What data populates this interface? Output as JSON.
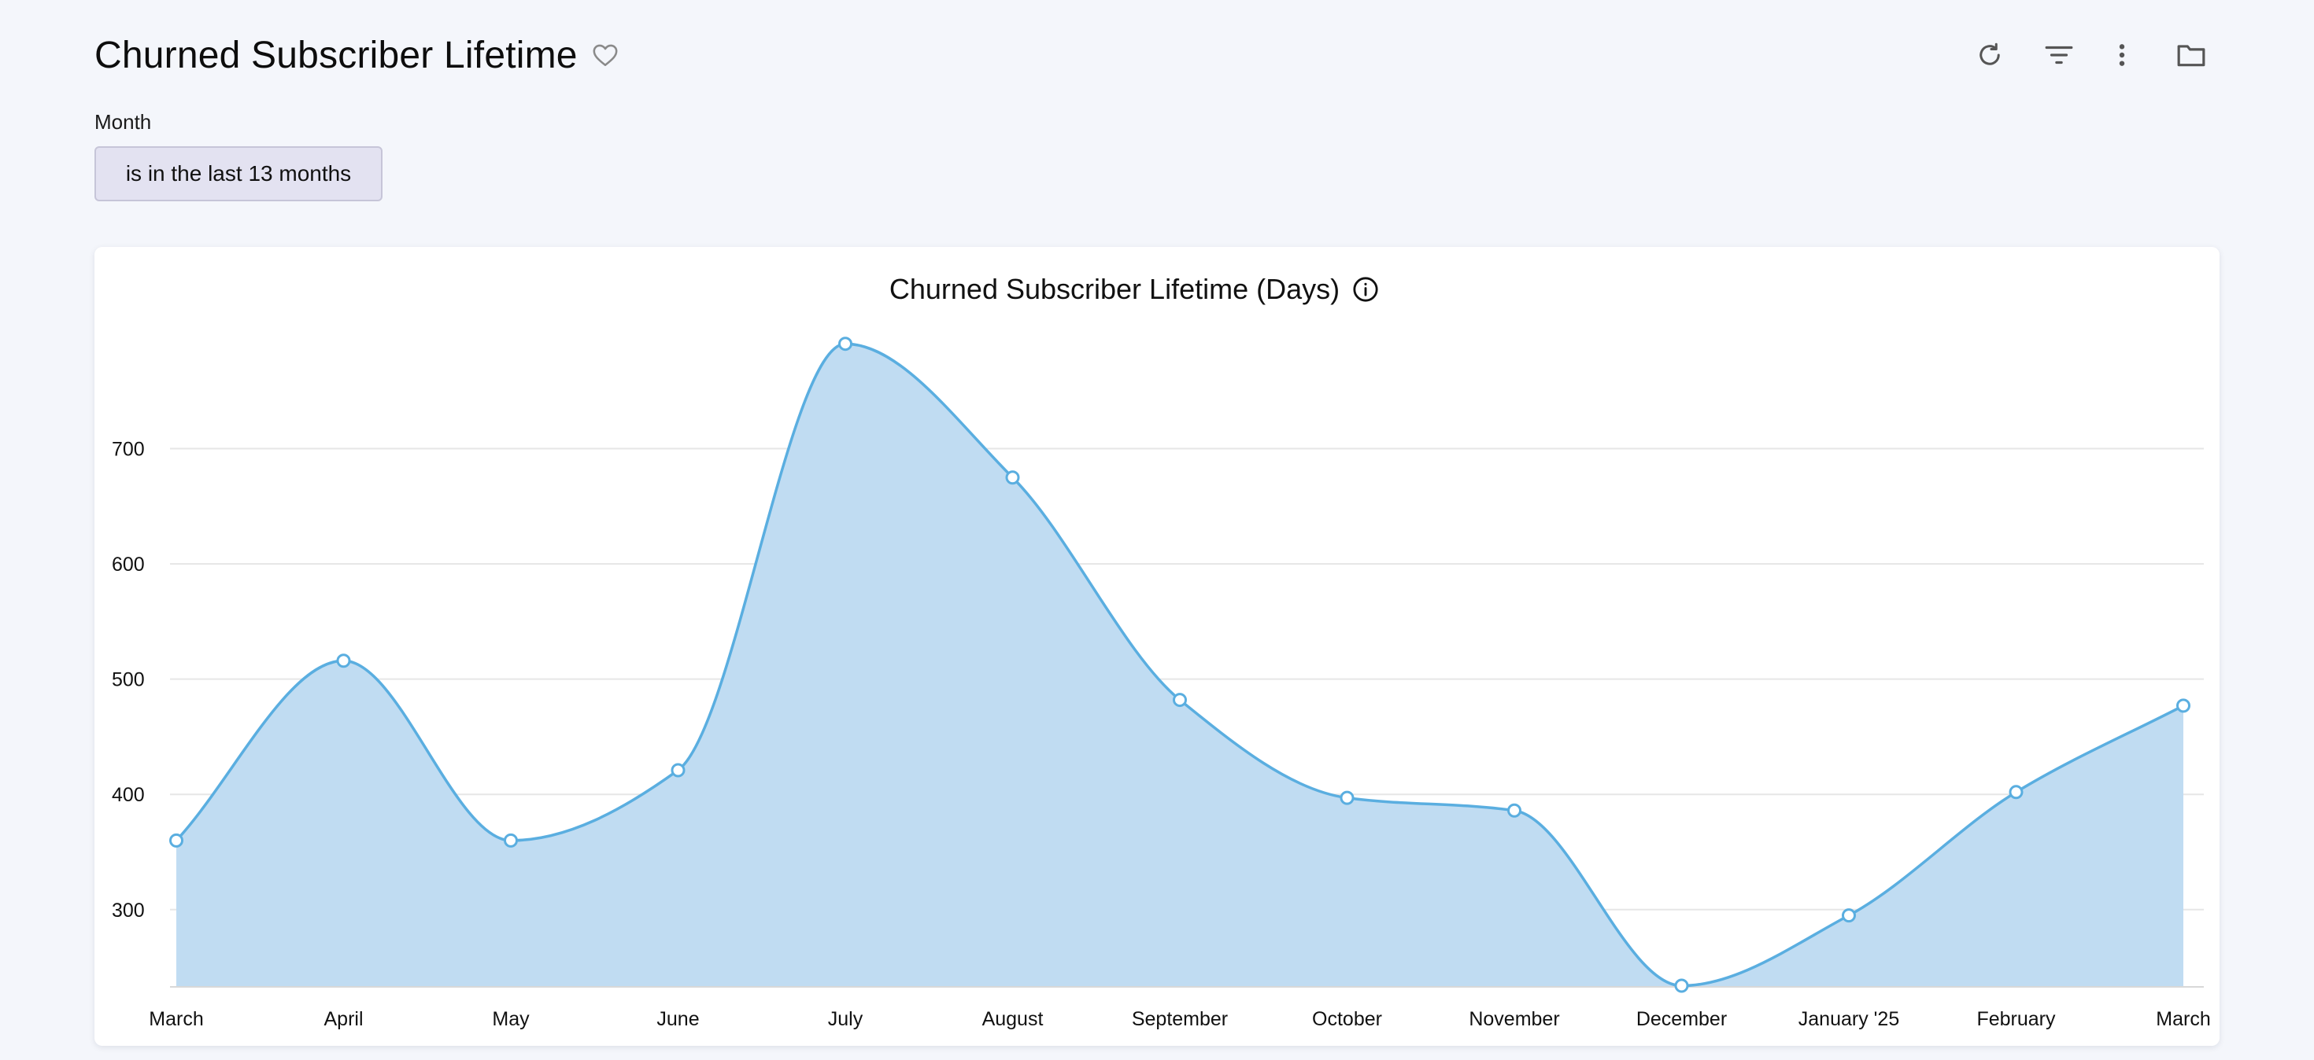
{
  "header": {
    "title": "Churned Subscriber Lifetime",
    "favorite_icon": "heart-outline-icon"
  },
  "toolbar": {
    "icons": [
      "refresh-icon",
      "filter-icon",
      "more-vertical-icon",
      "folder-icon"
    ]
  },
  "filter": {
    "label": "Month",
    "value": "is in the last 13 months"
  },
  "colors": {
    "area_fill": "#c0dcf2",
    "line": "#5aaee0",
    "grid": "#e6e6e6",
    "pill_bg": "#e3e2f1"
  },
  "chart_data": {
    "type": "area",
    "title": "Churned Subscriber Lifetime (Days)",
    "info_icon": "info-icon",
    "categories": [
      "March",
      "April",
      "May",
      "June",
      "July",
      "August",
      "September",
      "October",
      "November",
      "December",
      "January '25",
      "February",
      "March"
    ],
    "values": [
      360,
      516,
      360,
      421,
      791,
      675,
      482,
      397,
      386,
      234,
      295,
      402,
      477
    ],
    "ylim": [
      233,
      800
    ],
    "yticks": [
      300,
      400,
      500,
      600,
      700
    ],
    "grid": true,
    "xlabel": "",
    "ylabel": ""
  }
}
